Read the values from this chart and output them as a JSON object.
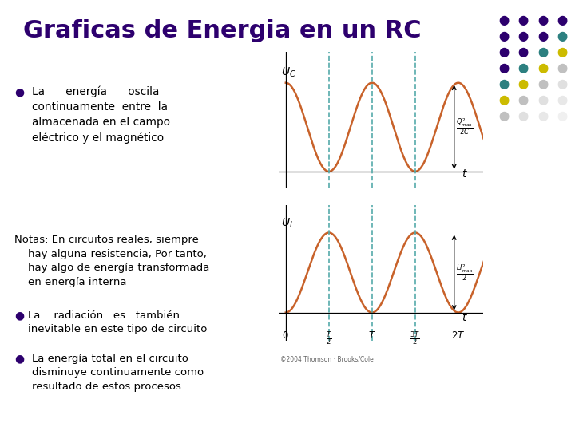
{
  "title": "Graficas de Energia en un RC",
  "title_color": "#2d006e",
  "title_fontsize": 22,
  "background_color": "#ffffff",
  "bullet_color": "#2d006e",
  "text_color": "#000000",
  "wave_color": "#c8622a",
  "dashed_line_color": "#55aaaa",
  "copyright": "©2004 Thomson · Brooks/Cole",
  "bullet1_line1": "La      energía      oscila",
  "bullet1_line2": "continuamente  entre  la",
  "bullet1_line3": "almacenada en el campo",
  "bullet1_line4": "eléctrico y el magnético",
  "notes_line1": "Notas: En circuitos reales, siempre",
  "notes_line2": "    hay alguna resistencia, Por tanto,",
  "notes_line3": "    hay algo de energía transformada",
  "notes_line4": "    en energía interna",
  "bullet2_line1": "    La    radiación   es   también",
  "bullet2_line2": "    inevitable en este tipo de circuito",
  "bullet3_line1": "La energía total en el circuito",
  "bullet3_line2": "disminuye continuamente como",
  "bullet3_line3": "resultado de estos procesos",
  "dot_grid": [
    [
      "#2d006e",
      "#2d006e",
      "#2d006e"
    ],
    [
      "#2d006e",
      "#2d006e",
      "#2d006e"
    ],
    [
      "#2d006e",
      "#2d006e",
      "#2d8080",
      "#d4c000"
    ],
    [
      "#2d006e",
      "#2d8080",
      "#d4c000",
      "#c0c0c0"
    ],
    [
      "#2d8080",
      "#d4c000",
      "#c0c0c0",
      "#e0e0e0"
    ],
    [
      "#d4c000",
      "#c0c0c0",
      "#e0e0e0",
      "#e0e0e0"
    ],
    [
      "#c0c0c0",
      "#e0e0e0"
    ]
  ],
  "dot_grid2": [
    [
      "#2d006e",
      "#2d006e",
      "#2d006e"
    ],
    [
      "#2d006e",
      "#2d006e",
      "#2d006e",
      "#2d8080"
    ],
    [
      "#2d006e",
      "#2d006e",
      "#2d8080",
      "#d4c000"
    ],
    [
      "#2d006e",
      "#2d8080",
      "#d4c000",
      "#c8c8c8"
    ],
    [
      "#2d8080",
      "#d4c000",
      "#c8c8c8",
      "#e0e0e0"
    ],
    [
      "#d4c000",
      "#c8c8c8",
      "#e0e0e0"
    ],
    [
      "#c8c8c8",
      "#e0e0e0"
    ]
  ]
}
